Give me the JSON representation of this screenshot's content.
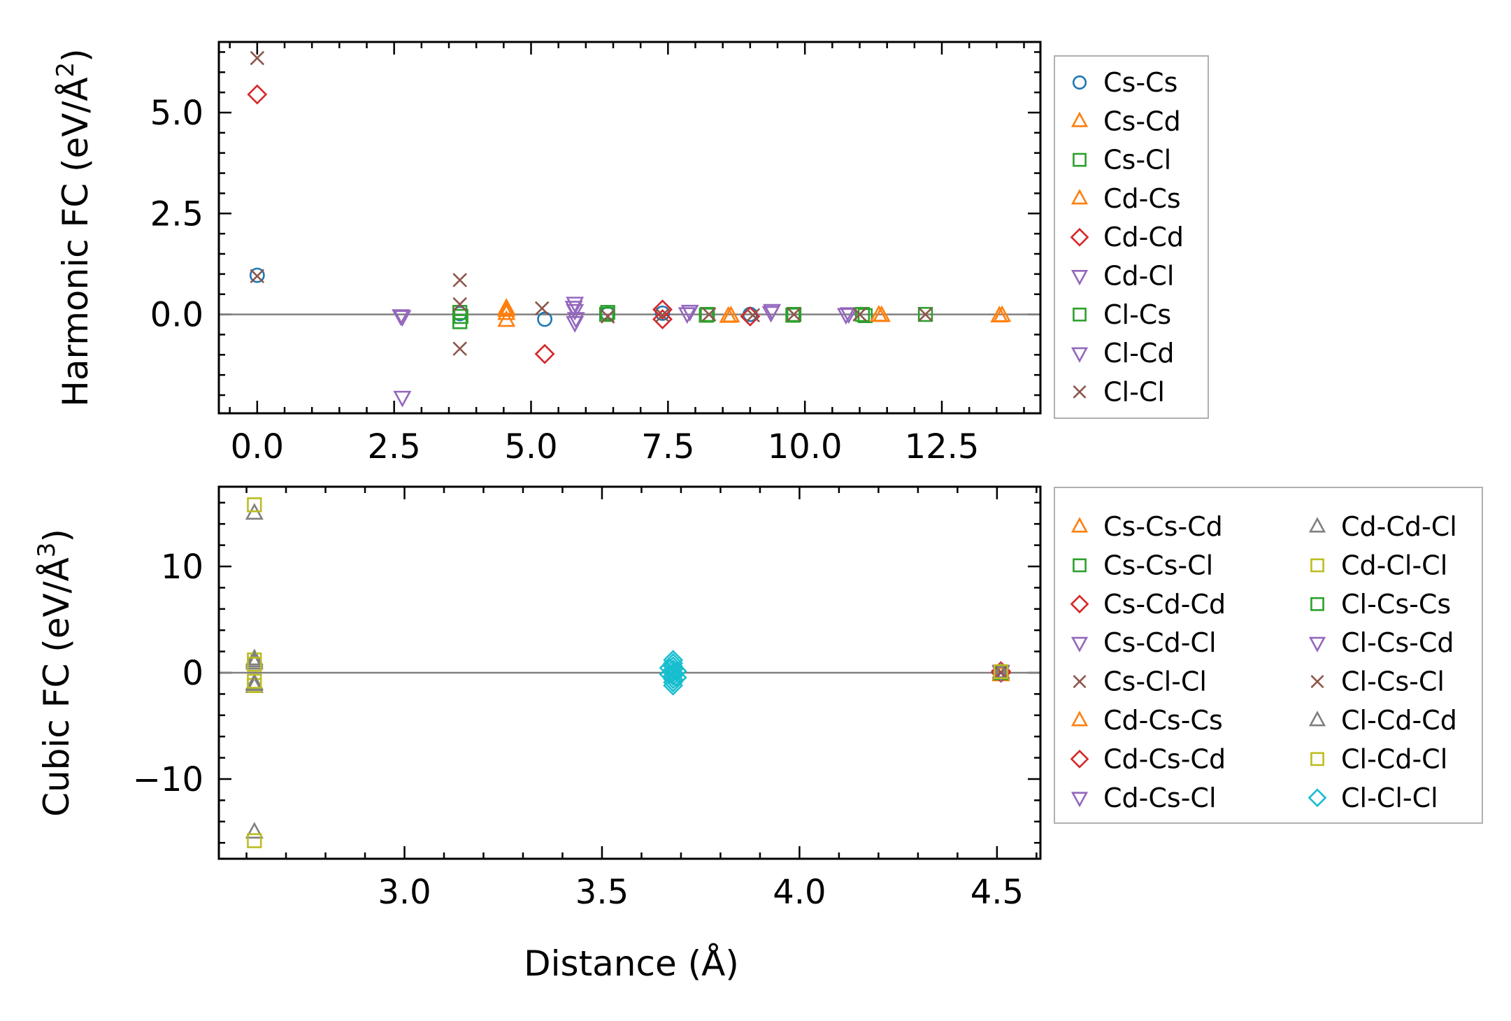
{
  "figure": {
    "xlabel": "Distance (Å)"
  },
  "chart_data": [
    {
      "type": "scatter",
      "ylabel": "Harmonic FC (eV/Å²)",
      "ylabel_main": "Harmonic FC (eV/Å",
      "ylabel_sup": "2",
      "ylabel_close": ")",
      "xlim": [
        -0.7,
        14.3
      ],
      "ylim": [
        -2.45,
        6.75
      ],
      "xticks": [
        0.0,
        2.5,
        5.0,
        7.5,
        10.0,
        12.5
      ],
      "xtick_labels": [
        "0.0",
        "2.5",
        "5.0",
        "7.5",
        "10.0",
        "12.5"
      ],
      "yticks": [
        0.0,
        2.5,
        5.0
      ],
      "ytick_labels": [
        "0.0",
        "2.5",
        "5.0"
      ],
      "hline": 0,
      "legend_position": "outside-right",
      "series": [
        {
          "name": "Cs-Cs",
          "marker": "circle",
          "color": "#1f77b4",
          "points": [
            [
              0,
              0.97
            ],
            [
              3.7,
              0.02
            ],
            [
              5.25,
              -0.12
            ],
            [
              6.4,
              0.01
            ],
            [
              7.4,
              0.03
            ],
            [
              9.0,
              0.0
            ]
          ]
        },
        {
          "name": "Cs-Cd",
          "marker": "triangle-up",
          "color": "#ff7f0e",
          "points": [
            [
              4.55,
              0.15
            ],
            [
              4.55,
              0.02
            ],
            [
              4.55,
              -0.15
            ],
            [
              8.6,
              -0.05
            ],
            [
              11.4,
              -0.03
            ],
            [
              13.6,
              -0.03
            ]
          ]
        },
        {
          "name": "Cs-Cl",
          "marker": "square",
          "color": "#2ca02c",
          "points": [
            [
              3.7,
              0.05
            ],
            [
              3.7,
              -0.18
            ],
            [
              6.4,
              0.05
            ],
            [
              8.2,
              -0.02
            ],
            [
              9.8,
              0.0
            ],
            [
              11.1,
              -0.03
            ],
            [
              12.2,
              0.0
            ]
          ]
        },
        {
          "name": "Cd-Cs",
          "marker": "triangle-up",
          "color": "#ff7f0e",
          "points": [
            [
              4.55,
              0.1
            ],
            [
              8.65,
              -0.04
            ],
            [
              11.35,
              -0.02
            ],
            [
              13.55,
              -0.04
            ]
          ]
        },
        {
          "name": "Cd-Cd",
          "marker": "diamond",
          "color": "#d62728",
          "points": [
            [
              0,
              5.45
            ],
            [
              5.25,
              -0.98
            ],
            [
              7.4,
              0.12
            ],
            [
              7.4,
              -0.12
            ],
            [
              9.0,
              -0.05
            ]
          ]
        },
        {
          "name": "Cd-Cl",
          "marker": "triangle-down",
          "color": "#9467bd",
          "points": [
            [
              2.65,
              -0.05
            ],
            [
              2.65,
              -2.05
            ],
            [
              5.8,
              0.28
            ],
            [
              5.8,
              0.1
            ],
            [
              5.8,
              -0.2
            ],
            [
              7.9,
              0.08
            ],
            [
              9.4,
              0.1
            ],
            [
              10.8,
              0.02
            ]
          ]
        },
        {
          "name": "Cl-Cs",
          "marker": "square",
          "color": "#2ca02c",
          "points": [
            [
              3.72,
              -0.05
            ],
            [
              6.38,
              0.0
            ],
            [
              8.22,
              0.0
            ],
            [
              9.78,
              -0.02
            ],
            [
              11.05,
              0.0
            ]
          ]
        },
        {
          "name": "Cl-Cd",
          "marker": "triangle-down",
          "color": "#9467bd",
          "points": [
            [
              2.62,
              -0.03
            ],
            [
              5.78,
              0.18
            ],
            [
              5.82,
              -0.1
            ],
            [
              7.85,
              0.02
            ],
            [
              9.38,
              0.05
            ],
            [
              10.75,
              0.0
            ]
          ]
        },
        {
          "name": "Cl-Cl",
          "marker": "x",
          "color": "#8c564b",
          "points": [
            [
              0,
              6.35
            ],
            [
              0,
              0.95
            ],
            [
              3.7,
              0.85
            ],
            [
              3.7,
              0.25
            ],
            [
              3.7,
              -0.85
            ],
            [
              5.2,
              0.15
            ],
            [
              6.4,
              -0.05
            ],
            [
              7.4,
              -0.02
            ],
            [
              8.25,
              0.0
            ],
            [
              9.05,
              -0.02
            ],
            [
              9.8,
              0.0
            ],
            [
              11.0,
              0.0
            ],
            [
              12.2,
              0.0
            ]
          ]
        }
      ]
    },
    {
      "type": "scatter",
      "ylabel": "Cubic FC (eV/Å³)",
      "ylabel_main": "Cubic FC (eV/Å",
      "ylabel_sup": "3",
      "ylabel_close": ")",
      "xlim": [
        2.53,
        4.61
      ],
      "ylim": [
        -17.5,
        17.5
      ],
      "xticks": [
        3.0,
        3.5,
        4.0,
        4.5
      ],
      "xtick_labels": [
        "3.0",
        "3.5",
        "4.0",
        "4.5"
      ],
      "yticks": [
        -10,
        0,
        10
      ],
      "ytick_labels": [
        "−10",
        "0",
        "10"
      ],
      "hline": 0,
      "legend_position": "outside-right",
      "legend_columns": 2,
      "series": [
        {
          "name": "Cs-Cs-Cd",
          "marker": "triangle-up",
          "color": "#ff7f0e",
          "points": [
            [
              4.51,
              0.1
            ],
            [
              4.51,
              -0.2
            ]
          ]
        },
        {
          "name": "Cs-Cs-Cl",
          "marker": "square",
          "color": "#2ca02c",
          "points": [
            [
              4.51,
              0.05
            ]
          ]
        },
        {
          "name": "Cs-Cd-Cd",
          "marker": "diamond",
          "color": "#d62728",
          "points": [
            [
              4.51,
              0.15
            ]
          ]
        },
        {
          "name": "Cs-Cd-Cl",
          "marker": "triangle-down",
          "color": "#9467bd",
          "points": [
            [
              4.51,
              0.1
            ]
          ]
        },
        {
          "name": "Cs-Cl-Cl",
          "marker": "x",
          "color": "#8c564b",
          "points": [
            [
              4.51,
              0.0
            ]
          ]
        },
        {
          "name": "Cd-Cs-Cs",
          "marker": "triangle-up",
          "color": "#ff7f0e",
          "points": [
            [
              4.51,
              -0.1
            ]
          ]
        },
        {
          "name": "Cd-Cs-Cd",
          "marker": "diamond",
          "color": "#d62728",
          "points": [
            [
              4.51,
              0.0
            ]
          ]
        },
        {
          "name": "Cd-Cs-Cl",
          "marker": "triangle-down",
          "color": "#9467bd",
          "points": [
            [
              4.51,
              0.05
            ]
          ]
        },
        {
          "name": "Cd-Cd-Cl",
          "marker": "triangle-up",
          "color": "#7f7f7f",
          "points": [
            [
              2.62,
              15.0
            ],
            [
              2.62,
              -15.0
            ],
            [
              2.62,
              1.3
            ],
            [
              2.62,
              0.9
            ],
            [
              2.62,
              -1.0
            ],
            [
              2.62,
              -1.3
            ]
          ]
        },
        {
          "name": "Cd-Cl-Cl",
          "marker": "square",
          "color": "#bcbd22",
          "points": [
            [
              2.62,
              15.8
            ],
            [
              2.62,
              -15.8
            ],
            [
              2.62,
              1.2
            ],
            [
              2.62,
              -1.2
            ]
          ]
        },
        {
          "name": "Cl-Cs-Cs",
          "marker": "square",
          "color": "#2ca02c",
          "points": [
            [
              4.51,
              0.0
            ]
          ]
        },
        {
          "name": "Cl-Cs-Cd",
          "marker": "triangle-down",
          "color": "#9467bd",
          "points": [
            [
              4.51,
              0.15
            ]
          ]
        },
        {
          "name": "Cl-Cs-Cl",
          "marker": "x",
          "color": "#8c564b",
          "points": [
            [
              4.51,
              0.05
            ]
          ]
        },
        {
          "name": "Cl-Cd-Cd",
          "marker": "triangle-up",
          "color": "#7f7f7f",
          "points": [
            [
              2.62,
              1.1
            ],
            [
              2.62,
              -1.1
            ],
            [
              4.51,
              0.05
            ]
          ]
        },
        {
          "name": "Cl-Cd-Cl",
          "marker": "square",
          "color": "#bcbd22",
          "points": [
            [
              2.62,
              0.8
            ],
            [
              2.62,
              -0.8
            ],
            [
              4.51,
              0.1
            ]
          ]
        },
        {
          "name": "Cl-Cl-Cl",
          "marker": "diamond",
          "color": "#17becf",
          "points": [
            [
              3.68,
              1.2
            ],
            [
              3.68,
              0.9
            ],
            [
              3.68,
              0.6
            ],
            [
              3.68,
              0.3
            ],
            [
              3.68,
              0.0
            ],
            [
              3.68,
              -0.3
            ],
            [
              3.68,
              -0.6
            ],
            [
              3.68,
              -0.9
            ],
            [
              3.68,
              -1.2
            ],
            [
              3.67,
              0.45
            ],
            [
              3.69,
              -0.45
            ],
            [
              3.67,
              -0.15
            ],
            [
              3.69,
              0.15
            ]
          ]
        }
      ]
    }
  ]
}
